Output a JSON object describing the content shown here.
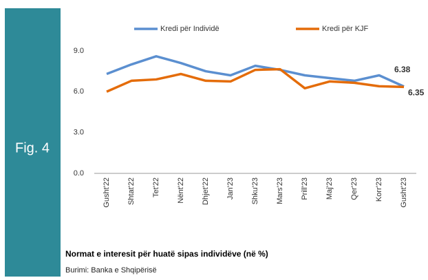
{
  "figure_label": "Fig. 4",
  "chart_data": {
    "type": "line",
    "caption": "Normat e interesit për huatë sipas  individëve (në %)",
    "source": "Burimi: Banka e Shqipërisë",
    "categories": [
      "Gusht'22",
      "Shtat'22",
      "Tet'22",
      "Nënt'22",
      "Dhjet'22",
      "Jan'23",
      "Shku'23",
      "Mars'23",
      "Prill'23",
      "Maj'23",
      "Qer'23",
      "Korr'23",
      "Gusht'23"
    ],
    "series": [
      {
        "name": "Kredi për Individë",
        "color": "#5b8fd0",
        "values": [
          7.3,
          8.0,
          8.6,
          8.1,
          7.5,
          7.2,
          7.9,
          7.6,
          7.2,
          7.0,
          6.8,
          7.2,
          6.38
        ]
      },
      {
        "name": "Kredi për KJF",
        "color": "#e46c0a",
        "values": [
          6.0,
          6.8,
          6.9,
          7.3,
          6.8,
          6.75,
          7.6,
          7.65,
          6.25,
          6.75,
          6.65,
          6.4,
          6.35
        ]
      }
    ],
    "ylim": [
      0,
      9.6
    ],
    "yticks": [
      {
        "value": 0,
        "label": "0.0"
      },
      {
        "value": 3,
        "label": "3.0"
      },
      {
        "value": 6,
        "label": "6.0"
      },
      {
        "value": 9,
        "label": "9.0"
      }
    ],
    "grid": false,
    "legend": "top"
  }
}
